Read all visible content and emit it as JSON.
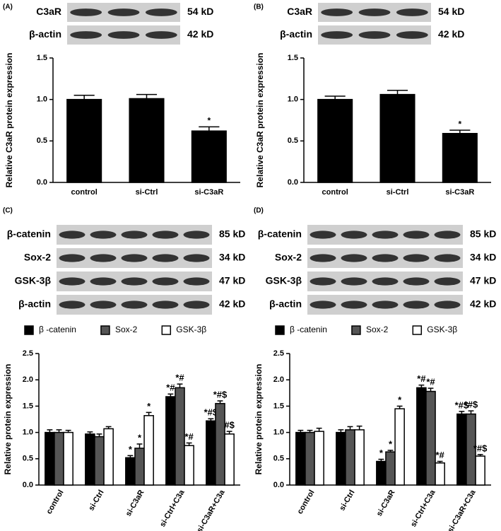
{
  "chart_data": [
    {
      "type": "bar",
      "panel": "(A)",
      "ylabel": "Relative C3aR protein expression",
      "blot": [
        {
          "protein": "C3aR",
          "size": "54 kD"
        },
        {
          "protein": "β-actin",
          "size": "42 kD"
        }
      ],
      "categories": [
        "control",
        "si-Ctrl",
        "si-C3aR"
      ],
      "values": [
        1.0,
        1.01,
        0.62
      ],
      "errors": [
        0.05,
        0.05,
        0.05
      ],
      "annotations": [
        null,
        null,
        "*"
      ],
      "color": "#000000",
      "ylim": [
        0,
        1.5
      ],
      "yticks": [
        {
          "value": 0,
          "label": "0.0"
        },
        0.5,
        {
          "value": 1,
          "label": "1.0"
        },
        1.5
      ]
    },
    {
      "type": "bar",
      "panel": "(B)",
      "ylabel": "Relative C3aR protein expression",
      "blot": [
        {
          "protein": "C3aR",
          "size": "54 kD"
        },
        {
          "protein": "β-actin",
          "size": "42 kD"
        }
      ],
      "categories": [
        "control",
        "si-Ctrl",
        "si-C3aR"
      ],
      "values": [
        1.0,
        1.06,
        0.59
      ],
      "errors": [
        0.04,
        0.05,
        0.04
      ],
      "annotations": [
        null,
        null,
        "*"
      ],
      "color": "#000000",
      "ylim": [
        0,
        1.5
      ],
      "yticks": [
        {
          "value": 0,
          "label": "0.0"
        },
        0.5,
        {
          "value": 1,
          "label": "1.0"
        },
        1.5
      ]
    },
    {
      "type": "grouped_bar",
      "panel": "(C)",
      "ylabel": "Relative protein expression",
      "blot": [
        {
          "protein": "β-catenin",
          "size": "85 kD"
        },
        {
          "protein": "Sox-2",
          "size": "34 kD"
        },
        {
          "protein": "GSK-3β",
          "size": "47 kD"
        },
        {
          "protein": "β-actin",
          "size": "42 kD"
        }
      ],
      "categories": [
        "control",
        "si-Ctrl",
        "si-C3aR",
        "si-Ctrl+C3a",
        "si-C3aR+C3a"
      ],
      "series": [
        {
          "name": "β -catenin",
          "color": "#000000",
          "values": [
            1.0,
            0.97,
            0.52,
            1.68,
            1.22
          ],
          "errors": [
            0.05,
            0.04,
            0.04,
            0.05,
            0.04
          ],
          "annotations": [
            null,
            null,
            "*",
            "*#",
            "*#$"
          ]
        },
        {
          "name": "Sox-2",
          "color": "#555555",
          "values": [
            1.0,
            0.92,
            0.7,
            1.85,
            1.55
          ],
          "errors": [
            0.05,
            0.05,
            0.08,
            0.07,
            0.05
          ],
          "annotations": [
            null,
            null,
            "*",
            "*#",
            "*#$"
          ]
        },
        {
          "name": "GSK-3β",
          "color": "#ffffff",
          "values": [
            1.0,
            1.07,
            1.32,
            0.75,
            0.97
          ],
          "errors": [
            0.04,
            0.04,
            0.06,
            0.05,
            0.05
          ],
          "annotations": [
            null,
            null,
            "*",
            "*#",
            "#$"
          ]
        }
      ],
      "ylim": [
        0,
        2.5
      ],
      "yticks": [
        {
          "value": 0,
          "label": "0.0"
        },
        0.5,
        {
          "value": 1,
          "label": "1.0"
        },
        1.5,
        {
          "value": 2,
          "label": "2.0"
        },
        2.5
      ]
    },
    {
      "type": "grouped_bar",
      "panel": "(D)",
      "ylabel": "Relative protein expression",
      "blot": [
        {
          "protein": "β-catenin",
          "size": "85 kD"
        },
        {
          "protein": "Sox-2",
          "size": "34 kD"
        },
        {
          "protein": "GSK-3β",
          "size": "47 kD"
        },
        {
          "protein": "β-actin",
          "size": "42 kD"
        }
      ],
      "categories": [
        "control",
        "si-Ctrl",
        "si-C3aR",
        "si-Ctrl+C3a",
        "si-C3aR+C3a"
      ],
      "series": [
        {
          "name": "β -catenin",
          "color": "#000000",
          "values": [
            1.0,
            1.0,
            0.45,
            1.85,
            1.35
          ],
          "errors": [
            0.04,
            0.05,
            0.04,
            0.05,
            0.05
          ],
          "annotations": [
            null,
            null,
            "*",
            "*#",
            "*#$"
          ]
        },
        {
          "name": "Sox-2",
          "color": "#555555",
          "values": [
            1.0,
            1.05,
            0.63,
            1.78,
            1.35
          ],
          "errors": [
            0.04,
            0.06,
            0.03,
            0.06,
            0.06
          ],
          "annotations": [
            null,
            null,
            "*",
            "*#",
            "*#$"
          ]
        },
        {
          "name": "GSK-3β",
          "color": "#ffffff",
          "values": [
            1.02,
            1.05,
            1.45,
            0.42,
            0.55
          ],
          "errors": [
            0.06,
            0.07,
            0.05,
            0.03,
            0.03
          ],
          "annotations": [
            null,
            null,
            "*",
            "*#",
            "*#$"
          ]
        }
      ],
      "ylim": [
        0,
        2.5
      ],
      "yticks": [
        {
          "value": 0,
          "label": "0.0"
        },
        0.5,
        {
          "value": 1,
          "label": "1.0"
        },
        1.5,
        {
          "value": 2,
          "label": "2.0"
        },
        2.5
      ]
    }
  ]
}
